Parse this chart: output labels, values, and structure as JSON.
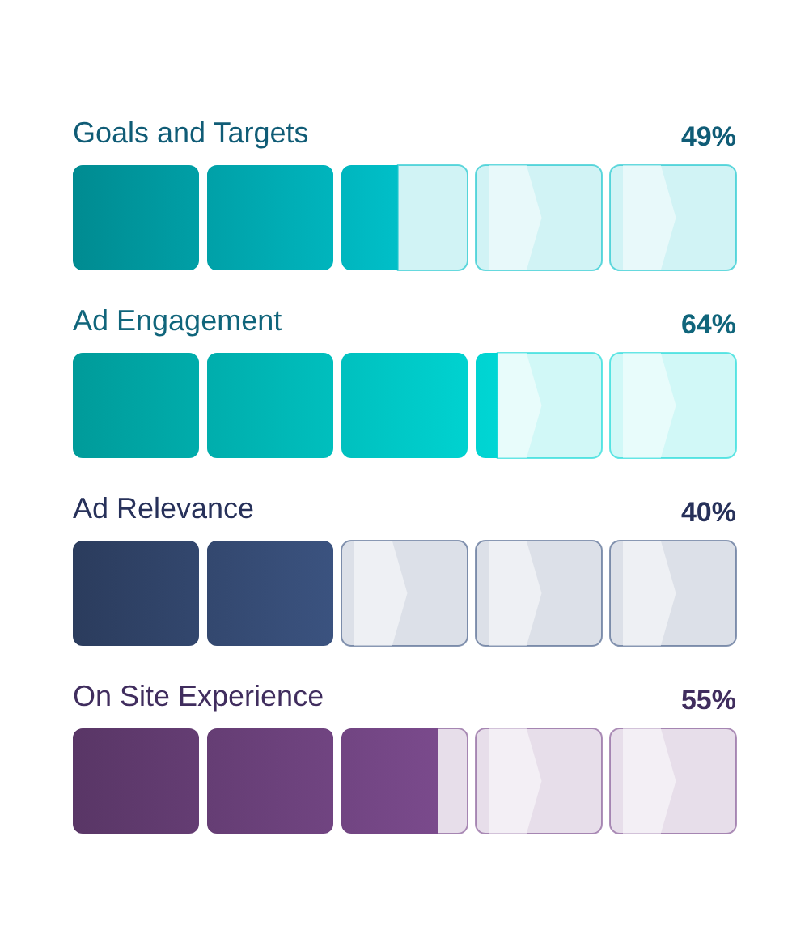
{
  "chart_data": {
    "type": "bar",
    "orientation": "horizontal",
    "categories": [
      "Goals and Targets",
      "Ad Engagement",
      "Ad Relevance",
      "On Site Experience"
    ],
    "values": [
      49,
      64,
      40,
      55
    ],
    "value_labels": [
      "49%",
      "64%",
      "40%",
      "55%"
    ],
    "colors": [
      "#00bfc8",
      "#00d6d4",
      "#3b5380",
      "#7a4a8c"
    ]
  }
}
